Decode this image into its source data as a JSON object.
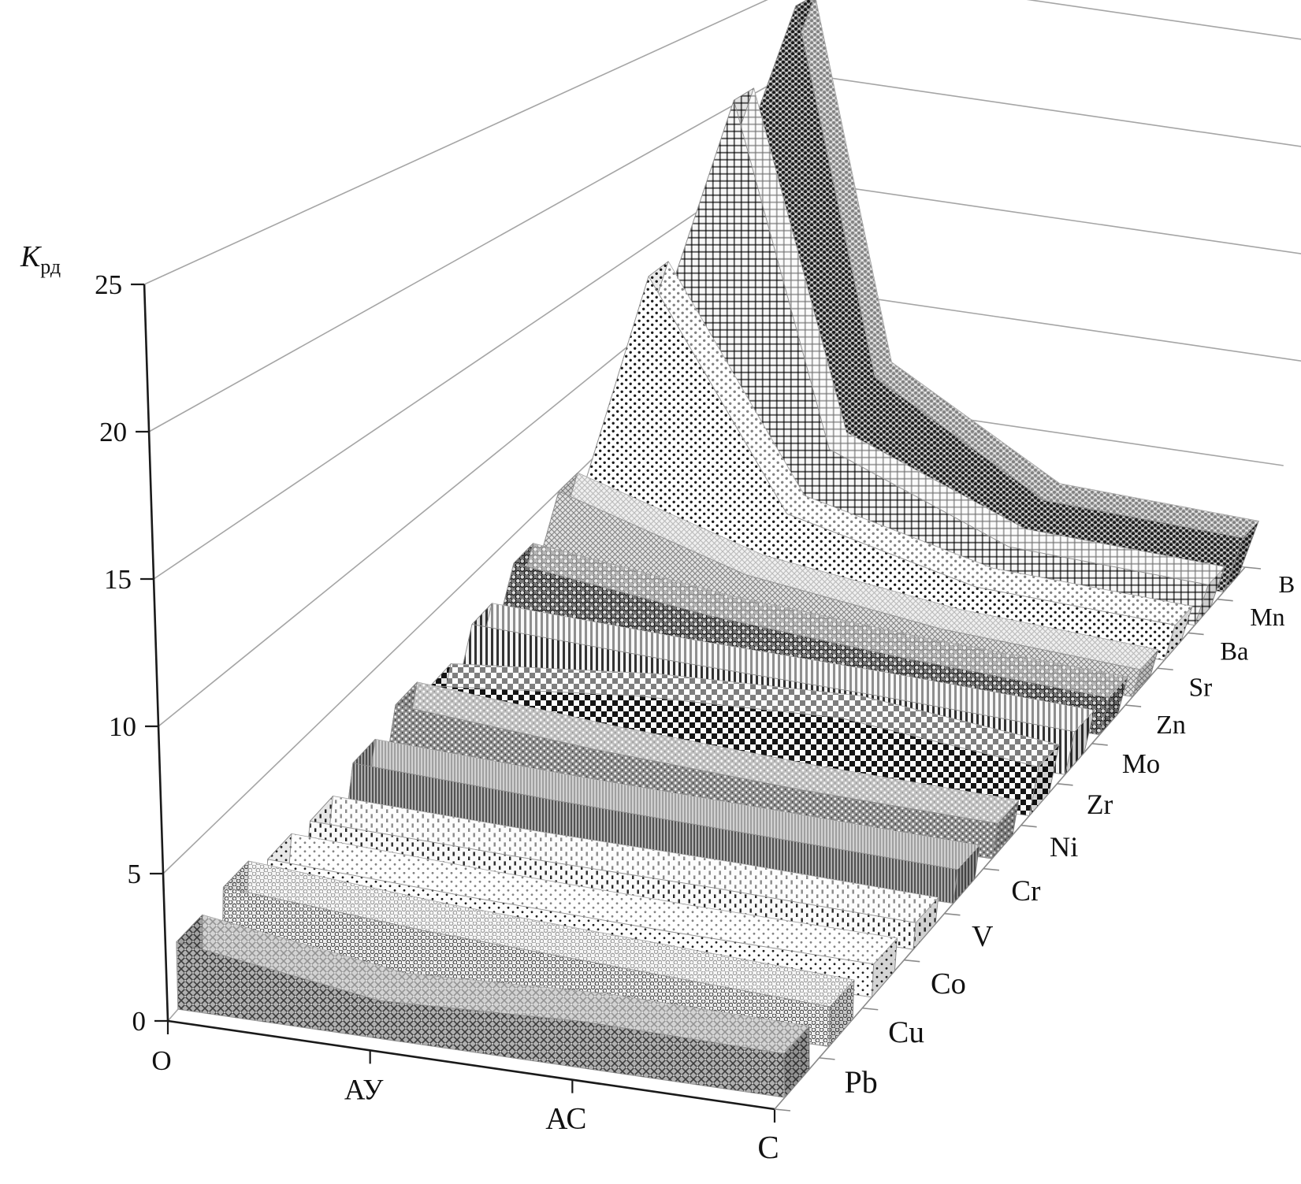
{
  "chart_data": {
    "type": "area3d-ribbon",
    "title": {
      "main": "К",
      "subscript": "рд"
    },
    "value_axis": {
      "min": 0,
      "max": 25,
      "tick_step": 5,
      "tick_labels": [
        "0",
        "5",
        "10",
        "15",
        "20",
        "25"
      ]
    },
    "category_axis": {
      "tick_labels": [
        "О",
        "АУ",
        "АС",
        "С"
      ]
    },
    "series_axis_note": "series listed back-to-front as shown top-to-bottom on right axis",
    "series": [
      {
        "name": "B",
        "pattern": "speckle-dark",
        "values": [
          24.0,
          7.5,
          3.0,
          2.6
        ]
      },
      {
        "name": "Mn",
        "pattern": "plaid-grid",
        "values": [
          20.5,
          5.5,
          2.3,
          1.9
        ]
      },
      {
        "name": "Ba",
        "pattern": "dot-grid",
        "values": [
          13.5,
          4.0,
          2.0,
          1.6
        ]
      },
      {
        "name": "Sr",
        "pattern": "diamond-scale",
        "values": [
          5.2,
          2.8,
          1.7,
          1.2
        ]
      },
      {
        "name": "Zn",
        "pattern": "rings-dark",
        "values": [
          3.6,
          2.6,
          2.0,
          1.6
        ]
      },
      {
        "name": "Mo",
        "pattern": "vstripes",
        "values": [
          2.6,
          2.3,
          2.1,
          1.8
        ]
      },
      {
        "name": "Zr",
        "pattern": "checker",
        "values": [
          1.7,
          2.5,
          2.8,
          2.0
        ]
      },
      {
        "name": "Ni",
        "pattern": "dots-on-dark",
        "values": [
          2.6,
          2.0,
          1.6,
          1.4
        ]
      },
      {
        "name": "Cr",
        "pattern": "vlines-fine",
        "values": [
          2.0,
          1.7,
          1.5,
          1.3
        ]
      },
      {
        "name": "V",
        "pattern": "dash-rows",
        "values": [
          1.5,
          1.3,
          1.2,
          1.0
        ]
      },
      {
        "name": "Co",
        "pattern": "dots-sparse",
        "values": [
          1.8,
          1.5,
          1.3,
          1.2
        ]
      },
      {
        "name": "Cu",
        "pattern": "rings-light",
        "values": [
          2.5,
          2.0,
          1.7,
          1.4
        ]
      },
      {
        "name": "Pb",
        "pattern": "crosshatch",
        "values": [
          2.3,
          1.3,
          1.6,
          1.5
        ]
      }
    ],
    "layout_hints": {
      "grid": "on",
      "walls": [
        "left",
        "back"
      ],
      "legend_position": "right-axis-labels"
    },
    "colors": {
      "background": "#ffffff",
      "gridline": "#a5a5a5",
      "axis": "#1a1a1a",
      "series_axis": "#8a8a8a",
      "face_edge": "#8f8f8f",
      "label": "#111111"
    }
  }
}
